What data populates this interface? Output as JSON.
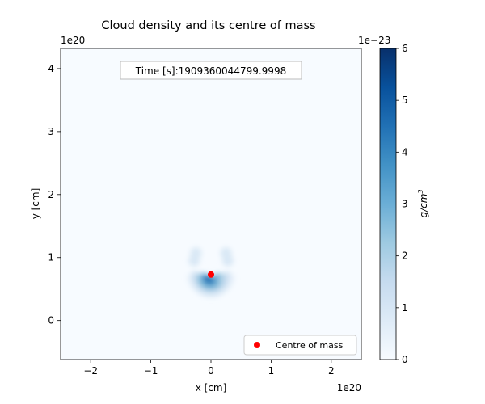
{
  "chart_data": {
    "type": "heatmap",
    "title": "Cloud density and its centre of mass",
    "xlabel": "x [cm]",
    "ylabel": "y [cm]",
    "x_offset_text": "1e20",
    "y_offset_text": "1e20",
    "xlim": [
      -2.5,
      2.5
    ],
    "ylim": [
      -0.62,
      4.32
    ],
    "x_ticks": [
      -2,
      -1,
      0,
      1,
      2
    ],
    "x_tick_labels": [
      "−2",
      "−1",
      "0",
      "1",
      "2"
    ],
    "y_ticks": [
      0,
      1,
      2,
      3,
      4
    ],
    "y_tick_labels": [
      "0",
      "1",
      "2",
      "3",
      "4"
    ],
    "grid": false,
    "annotation": "Time [s]:1909360044799.9998",
    "colorbar": {
      "label": "g/cm",
      "label_exponent": "3",
      "offset_text": "1e−23",
      "range": [
        0,
        6
      ],
      "ticks": [
        0,
        1,
        2,
        3,
        4,
        5,
        6
      ],
      "tick_labels": [
        "0",
        "1",
        "2",
        "3",
        "4",
        "5",
        "6"
      ],
      "colormap": "Blues",
      "colors": [
        "#f7fbff",
        "#deebf7",
        "#c6dbef",
        "#9ecae1",
        "#6baed6",
        "#4292c6",
        "#2171b5",
        "#08519c",
        "#08306b"
      ]
    },
    "cloud": {
      "shape": "crescent",
      "center": [
        0.0,
        0.78
      ],
      "max_density": 4.8
    },
    "series": [
      {
        "name": "Centre of mass",
        "type": "scatter",
        "x": [
          0.0
        ],
        "y": [
          0.73
        ],
        "color": "#ff0000"
      }
    ],
    "legend_position": "lower-right"
  }
}
